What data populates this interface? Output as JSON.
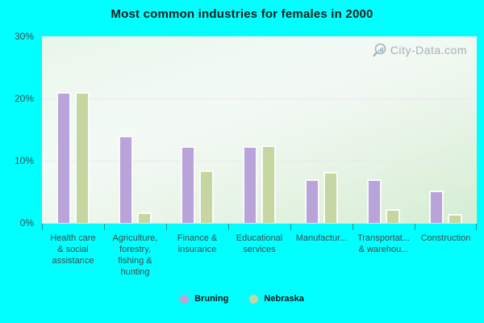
{
  "title": "Most common industries for females in 2000",
  "watermark": {
    "text": "City-Data.com",
    "icon": "magnifier-with-bars-icon",
    "color": "#9aa4ae"
  },
  "colors": {
    "background": "#00ffff",
    "bruning_bar": "#b9a4d9",
    "nebraska_bar": "#c6d6a1",
    "plot_top": "#f3faf6",
    "plot_bottom": "#d5edd2",
    "gridline": "#ece3ee",
    "axis_text": "#3e4a4a"
  },
  "legend": [
    {
      "label": "Bruning",
      "color": "#b9a4d9"
    },
    {
      "label": "Nebraska",
      "color": "#c6d6a1"
    }
  ],
  "chart_data": {
    "type": "bar",
    "title": "Most common industries for females in 2000",
    "categories": [
      "Health care & social assistance",
      "Agriculture, forestry, fishing & hunting",
      "Finance & insurance",
      "Educational services",
      "Manufactur...",
      "Transportat... & warehou...",
      "Construction"
    ],
    "x_tick_labels_display": [
      "Health care\n& social\nassistance",
      "Agriculture,\nforestry,\nfishing &\nhunting",
      "Finance &\ninsurance",
      "Educational\nservices",
      "Manufactur...",
      "Transportat...\n& warehou...",
      "Construction"
    ],
    "series": [
      {
        "name": "Bruning",
        "color": "#b9a4d9",
        "values": [
          21.0,
          14.0,
          12.3,
          12.3,
          7.0,
          7.0,
          5.2
        ]
      },
      {
        "name": "Nebraska",
        "color": "#c6d6a1",
        "values": [
          21.0,
          1.7,
          8.5,
          12.5,
          8.2,
          2.2,
          1.4
        ]
      }
    ],
    "xlabel": "",
    "ylabel": "",
    "ylim": [
      0,
      30
    ],
    "y_ticks": [
      {
        "value": 30,
        "label": "30%"
      },
      {
        "value": 20,
        "label": "20%"
      },
      {
        "value": 10,
        "label": "10%"
      },
      {
        "value": 0,
        "label": "0%"
      }
    ],
    "gridlines": [
      10,
      20
    ],
    "grid": true,
    "legend_position": "bottom"
  }
}
